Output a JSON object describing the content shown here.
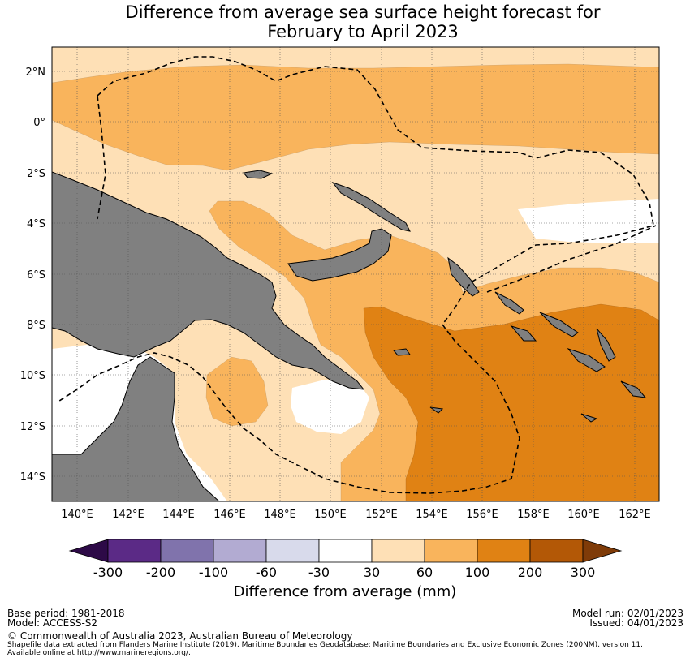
{
  "title_line1": "Difference from average sea surface height forecast for",
  "title_line2": "February to April 2023",
  "lat_labels": [
    "2°N",
    "0°",
    "2°S",
    "4°S",
    "6°S",
    "8°S",
    "10°S",
    "12°S",
    "14°S"
  ],
  "lon_labels": [
    "140°E",
    "142°E",
    "144°E",
    "146°E",
    "148°E",
    "150°E",
    "152°E",
    "154°E",
    "156°E",
    "158°E",
    "160°E",
    "162°E"
  ],
  "colorbar": {
    "ticks": [
      "-300",
      "-200",
      "-100",
      "-60",
      "-30",
      "30",
      "60",
      "100",
      "200",
      "300"
    ],
    "colors": [
      "#2d0a47",
      "#5b2a86",
      "#8073ac",
      "#b2abd2",
      "#d8daeb",
      "#ffffff",
      "#fee0b6",
      "#f9b45c",
      "#e08214",
      "#b35806",
      "#7f3b08"
    ],
    "title": "Difference from average (mm)"
  },
  "colors": {
    "land": "#808080",
    "dashed": "#000000"
  },
  "meta": {
    "base_period": "Base period: 1981-2018",
    "model": "Model: ACCESS-S2",
    "model_run": "Model run: 02/01/2023",
    "issued": "Issued: 04/01/2023",
    "copyright": "© Commonwealth of Australia 2023, Australian Bureau of Meteorology",
    "shapefile1": "Shapefile data extracted from Flanders Marine Institute (2019), Maritime Boundaries Geodatabase: Maritime Boundaries and Exclusive Economic Zones (200NM), version 11.",
    "shapefile2": "Available online at http://www.marineregions.org/."
  }
}
